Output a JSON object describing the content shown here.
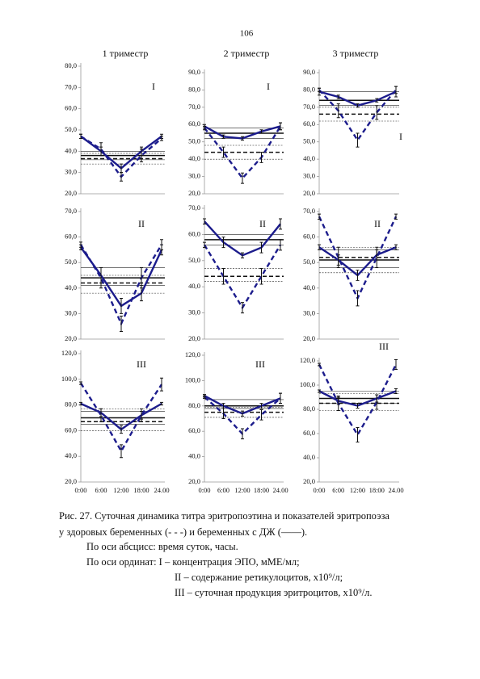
{
  "page_number": "106",
  "column_headers": [
    "1 триместр",
    "2 триместр",
    "3 триместр"
  ],
  "chart_data": [
    {
      "type": "line",
      "annotation": "I",
      "categories": [
        null,
        null,
        null,
        null,
        null
      ],
      "ylim": [
        20,
        80
      ],
      "yticks": [
        {
          "value": 20,
          "label": "20,0"
        },
        {
          "value": 30,
          "label": "30,0"
        },
        {
          "value": 40,
          "label": "40,0"
        },
        {
          "value": 50,
          "label": "50,0"
        },
        {
          "value": 60,
          "label": "60,0"
        },
        {
          "value": 70,
          "label": "70,0"
        },
        {
          "value": 80,
          "label": "80,0"
        }
      ],
      "series": [
        {
          "style": "solid",
          "color": "#1c1c8c",
          "values": [
            47,
            40,
            32,
            40,
            47
          ],
          "errors": [
            1,
            2,
            2,
            2,
            1
          ],
          "mean": 38,
          "band": [
            36,
            40
          ]
        },
        {
          "style": "dashed",
          "color": "#1c1c8c",
          "values": [
            47,
            41,
            28,
            38,
            46
          ],
          "errors": [
            1,
            3,
            2,
            3,
            1
          ],
          "mean": 36.5,
          "band": [
            34,
            39
          ]
        }
      ]
    },
    {
      "type": "line",
      "annotation": "I",
      "categories": [
        null,
        null,
        null,
        null,
        null
      ],
      "ylim": [
        20,
        90
      ],
      "yticks": [
        {
          "value": 20,
          "label": "20,0"
        },
        {
          "value": 30,
          "label": "30,0"
        },
        {
          "value": 40,
          "label": "40,0"
        },
        {
          "value": 50,
          "label": "50,0"
        },
        {
          "value": 60,
          "label": "60,0"
        },
        {
          "value": 70,
          "label": "70,0"
        },
        {
          "value": 80,
          "label": "80,0"
        },
        {
          "value": 90,
          "label": "90,0"
        }
      ],
      "series": [
        {
          "style": "solid",
          "color": "#1c1c8c",
          "values": [
            59,
            53,
            52,
            56,
            59
          ],
          "errors": [
            1,
            1,
            1,
            1,
            2
          ],
          "mean": 55,
          "band": [
            52,
            58
          ]
        },
        {
          "style": "dashed",
          "color": "#1c1c8c",
          "values": [
            58,
            44,
            29,
            41,
            59
          ],
          "errors": [
            1,
            3,
            3,
            3,
            2
          ],
          "mean": 44,
          "band": [
            40,
            48
          ]
        }
      ]
    },
    {
      "type": "line",
      "annotation": "I",
      "categories": [
        null,
        null,
        null,
        null,
        null
      ],
      "ylim": [
        20,
        90
      ],
      "yticks": [
        {
          "value": 20,
          "label": "20,0"
        },
        {
          "value": 30,
          "label": "30,0"
        },
        {
          "value": 40,
          "label": "40,0"
        },
        {
          "value": 50,
          "label": "50,0"
        },
        {
          "value": 60,
          "label": "60,0"
        },
        {
          "value": 70,
          "label": "70,0"
        },
        {
          "value": 80,
          "label": "80,0"
        },
        {
          "value": 90,
          "label": "90,0"
        }
      ],
      "series": [
        {
          "style": "solid",
          "color": "#1c1c8c",
          "values": [
            79,
            76,
            71,
            74,
            79
          ],
          "errors": [
            2,
            1,
            1,
            1,
            3
          ],
          "mean": 74,
          "band": [
            71,
            79
          ]
        },
        {
          "style": "dashed",
          "color": "#1c1c8c",
          "values": [
            80,
            68,
            51,
            67,
            80
          ],
          "errors": [
            1,
            4,
            4,
            4,
            2
          ],
          "mean": 66,
          "band": [
            62,
            70
          ]
        }
      ]
    },
    {
      "type": "line",
      "annotation": "II",
      "categories": [
        null,
        null,
        null,
        null,
        null
      ],
      "ylim": [
        20,
        70
      ],
      "yticks": [
        {
          "value": 20,
          "label": "20,0"
        },
        {
          "value": 30,
          "label": "30,0"
        },
        {
          "value": 40,
          "label": "40,0"
        },
        {
          "value": 50,
          "label": "50,0"
        },
        {
          "value": 60,
          "label": "60,0"
        },
        {
          "value": 70,
          "label": "70,0"
        }
      ],
      "series": [
        {
          "style": "solid",
          "color": "#1c1c8c",
          "values": [
            56,
            45,
            33,
            38,
            55
          ],
          "errors": [
            1,
            3,
            3,
            3,
            2
          ],
          "mean": 44,
          "band": [
            41,
            48
          ]
        },
        {
          "style": "dashed",
          "color": "#1c1c8c",
          "values": [
            57,
            44,
            26,
            44,
            57
          ],
          "errors": [
            1,
            4,
            3,
            4,
            2
          ],
          "mean": 42,
          "band": [
            38,
            45
          ]
        }
      ]
    },
    {
      "type": "line",
      "annotation": "II",
      "categories": [
        null,
        null,
        null,
        null,
        null
      ],
      "ylim": [
        20,
        70
      ],
      "yticks": [
        {
          "value": 20,
          "label": "20,0"
        },
        {
          "value": 30,
          "label": "30,0"
        },
        {
          "value": 40,
          "label": "40,0"
        },
        {
          "value": 50,
          "label": "50,0"
        },
        {
          "value": 60,
          "label": "60,0"
        },
        {
          "value": 70,
          "label": "70,0"
        }
      ],
      "series": [
        {
          "style": "solid",
          "color": "#1c1c8c",
          "values": [
            65,
            57,
            52,
            55,
            64
          ],
          "errors": [
            1,
            2,
            1,
            2,
            2
          ],
          "mean": 58,
          "band": [
            56,
            60
          ]
        },
        {
          "style": "dashed",
          "color": "#1c1c8c",
          "values": [
            56,
            44,
            32,
            44,
            56
          ],
          "errors": [
            1,
            3,
            2,
            3,
            2
          ],
          "mean": 44,
          "band": [
            42,
            47
          ]
        }
      ]
    },
    {
      "type": "line",
      "annotation": "II",
      "categories": [
        null,
        null,
        null,
        null,
        null
      ],
      "ylim": [
        20,
        70
      ],
      "yticks": [
        {
          "value": 20,
          "label": "20,0"
        },
        {
          "value": 30,
          "label": "30,0"
        },
        {
          "value": 40,
          "label": "40,0"
        },
        {
          "value": 50,
          "label": "50,0"
        },
        {
          "value": 60,
          "label": "60,0"
        },
        {
          "value": 70,
          "label": "70,0"
        }
      ],
      "series": [
        {
          "style": "solid",
          "color": "#1c1c8c",
          "values": [
            56,
            51,
            45,
            53,
            56
          ],
          "errors": [
            1,
            2,
            2,
            2,
            1
          ],
          "mean": 51,
          "band": [
            48,
            55
          ]
        },
        {
          "style": "dashed",
          "color": "#1c1c8c",
          "values": [
            68,
            52,
            36,
            52,
            68
          ],
          "errors": [
            1,
            4,
            3,
            4,
            1
          ],
          "mean": 52,
          "band": [
            46,
            56
          ]
        }
      ]
    },
    {
      "type": "line",
      "annotation": "III",
      "categories": [
        "0:00",
        "6:00",
        "12:00",
        "18:00",
        "24.00"
      ],
      "ylim": [
        20,
        120
      ],
      "yticks": [
        {
          "value": 20,
          "label": "20,0"
        },
        {
          "value": 40,
          "label": "40,0"
        },
        {
          "value": 60,
          "label": "60,0"
        },
        {
          "value": 80,
          "label": "80,0"
        },
        {
          "value": 100,
          "label": "100,0"
        },
        {
          "value": 120,
          "label": "120,0"
        }
      ],
      "series": [
        {
          "style": "solid",
          "color": "#1c1c8c",
          "values": [
            81,
            74,
            61,
            72,
            81
          ],
          "errors": [
            1,
            3,
            3,
            3,
            1
          ],
          "mean": 70,
          "band": [
            65,
            75
          ]
        },
        {
          "style": "dashed",
          "color": "#1c1c8c",
          "values": [
            97,
            72,
            44,
            72,
            96
          ],
          "errors": [
            1,
            5,
            5,
            5,
            5
          ],
          "mean": 67,
          "band": [
            60,
            77
          ]
        }
      ]
    },
    {
      "type": "line",
      "annotation": "III",
      "categories": [
        "0:00",
        "6:00",
        "12:00",
        "18:00",
        "24.00"
      ],
      "ylim": [
        20,
        120
      ],
      "yticks": [
        {
          "value": 20,
          "label": "20,0"
        },
        {
          "value": 40,
          "label": "40,0"
        },
        {
          "value": 60,
          "label": "60,0"
        },
        {
          "value": 80,
          "label": "80,0"
        },
        {
          "value": 100,
          "label": "100,0"
        },
        {
          "value": 120,
          "label": "120,0"
        }
      ],
      "series": [
        {
          "style": "solid",
          "color": "#1c1c8c",
          "values": [
            88,
            80,
            74,
            80,
            86
          ],
          "errors": [
            1,
            2,
            2,
            2,
            4
          ],
          "mean": 80,
          "band": [
            78,
            85
          ]
        },
        {
          "style": "dashed",
          "color": "#1c1c8c",
          "values": [
            87,
            74,
            58,
            73,
            86
          ],
          "errors": [
            1,
            4,
            4,
            4,
            4
          ],
          "mean": 75,
          "band": [
            71,
            79
          ]
        }
      ]
    },
    {
      "type": "line",
      "annotation": "III",
      "categories": [
        "0:00",
        "6:00",
        "12:00",
        "18:00",
        "24.00"
      ],
      "ylim": [
        20,
        120
      ],
      "yticks": [
        {
          "value": 20,
          "label": "20,0"
        },
        {
          "value": 40,
          "label": "40,0"
        },
        {
          "value": 60,
          "label": "60,0"
        },
        {
          "value": 80,
          "label": "80,0"
        },
        {
          "value": 100,
          "label": "100,0"
        },
        {
          "value": 120,
          "label": "120,0"
        }
      ],
      "series": [
        {
          "style": "solid",
          "color": "#1c1c8c",
          "values": [
            95,
            87,
            83,
            89,
            95
          ],
          "errors": [
            1,
            3,
            2,
            3,
            2
          ],
          "mean": 89,
          "band": [
            85,
            95
          ]
        },
        {
          "style": "dashed",
          "color": "#1c1c8c",
          "values": [
            117,
            85,
            59,
            86,
            117
          ],
          "errors": [
            1,
            6,
            6,
            6,
            4
          ],
          "mean": 85,
          "band": [
            79,
            93
          ]
        }
      ]
    }
  ],
  "caption": [
    "Рис. 27. Суточная динамика титра эритропоэтина и показателей эритропоэза",
    "у здоровых беременных (- - -) и беременных с ДЖ (——).",
    "По оси абсцисс: время суток, часы.",
    "По оси ординат:  I – концентрация ЭПО, мМЕ/мл;",
    "II – содержание ретикулоцитов, х10⁹/л;",
    "III – суточная продукция эритроцитов, х10⁹/л."
  ]
}
